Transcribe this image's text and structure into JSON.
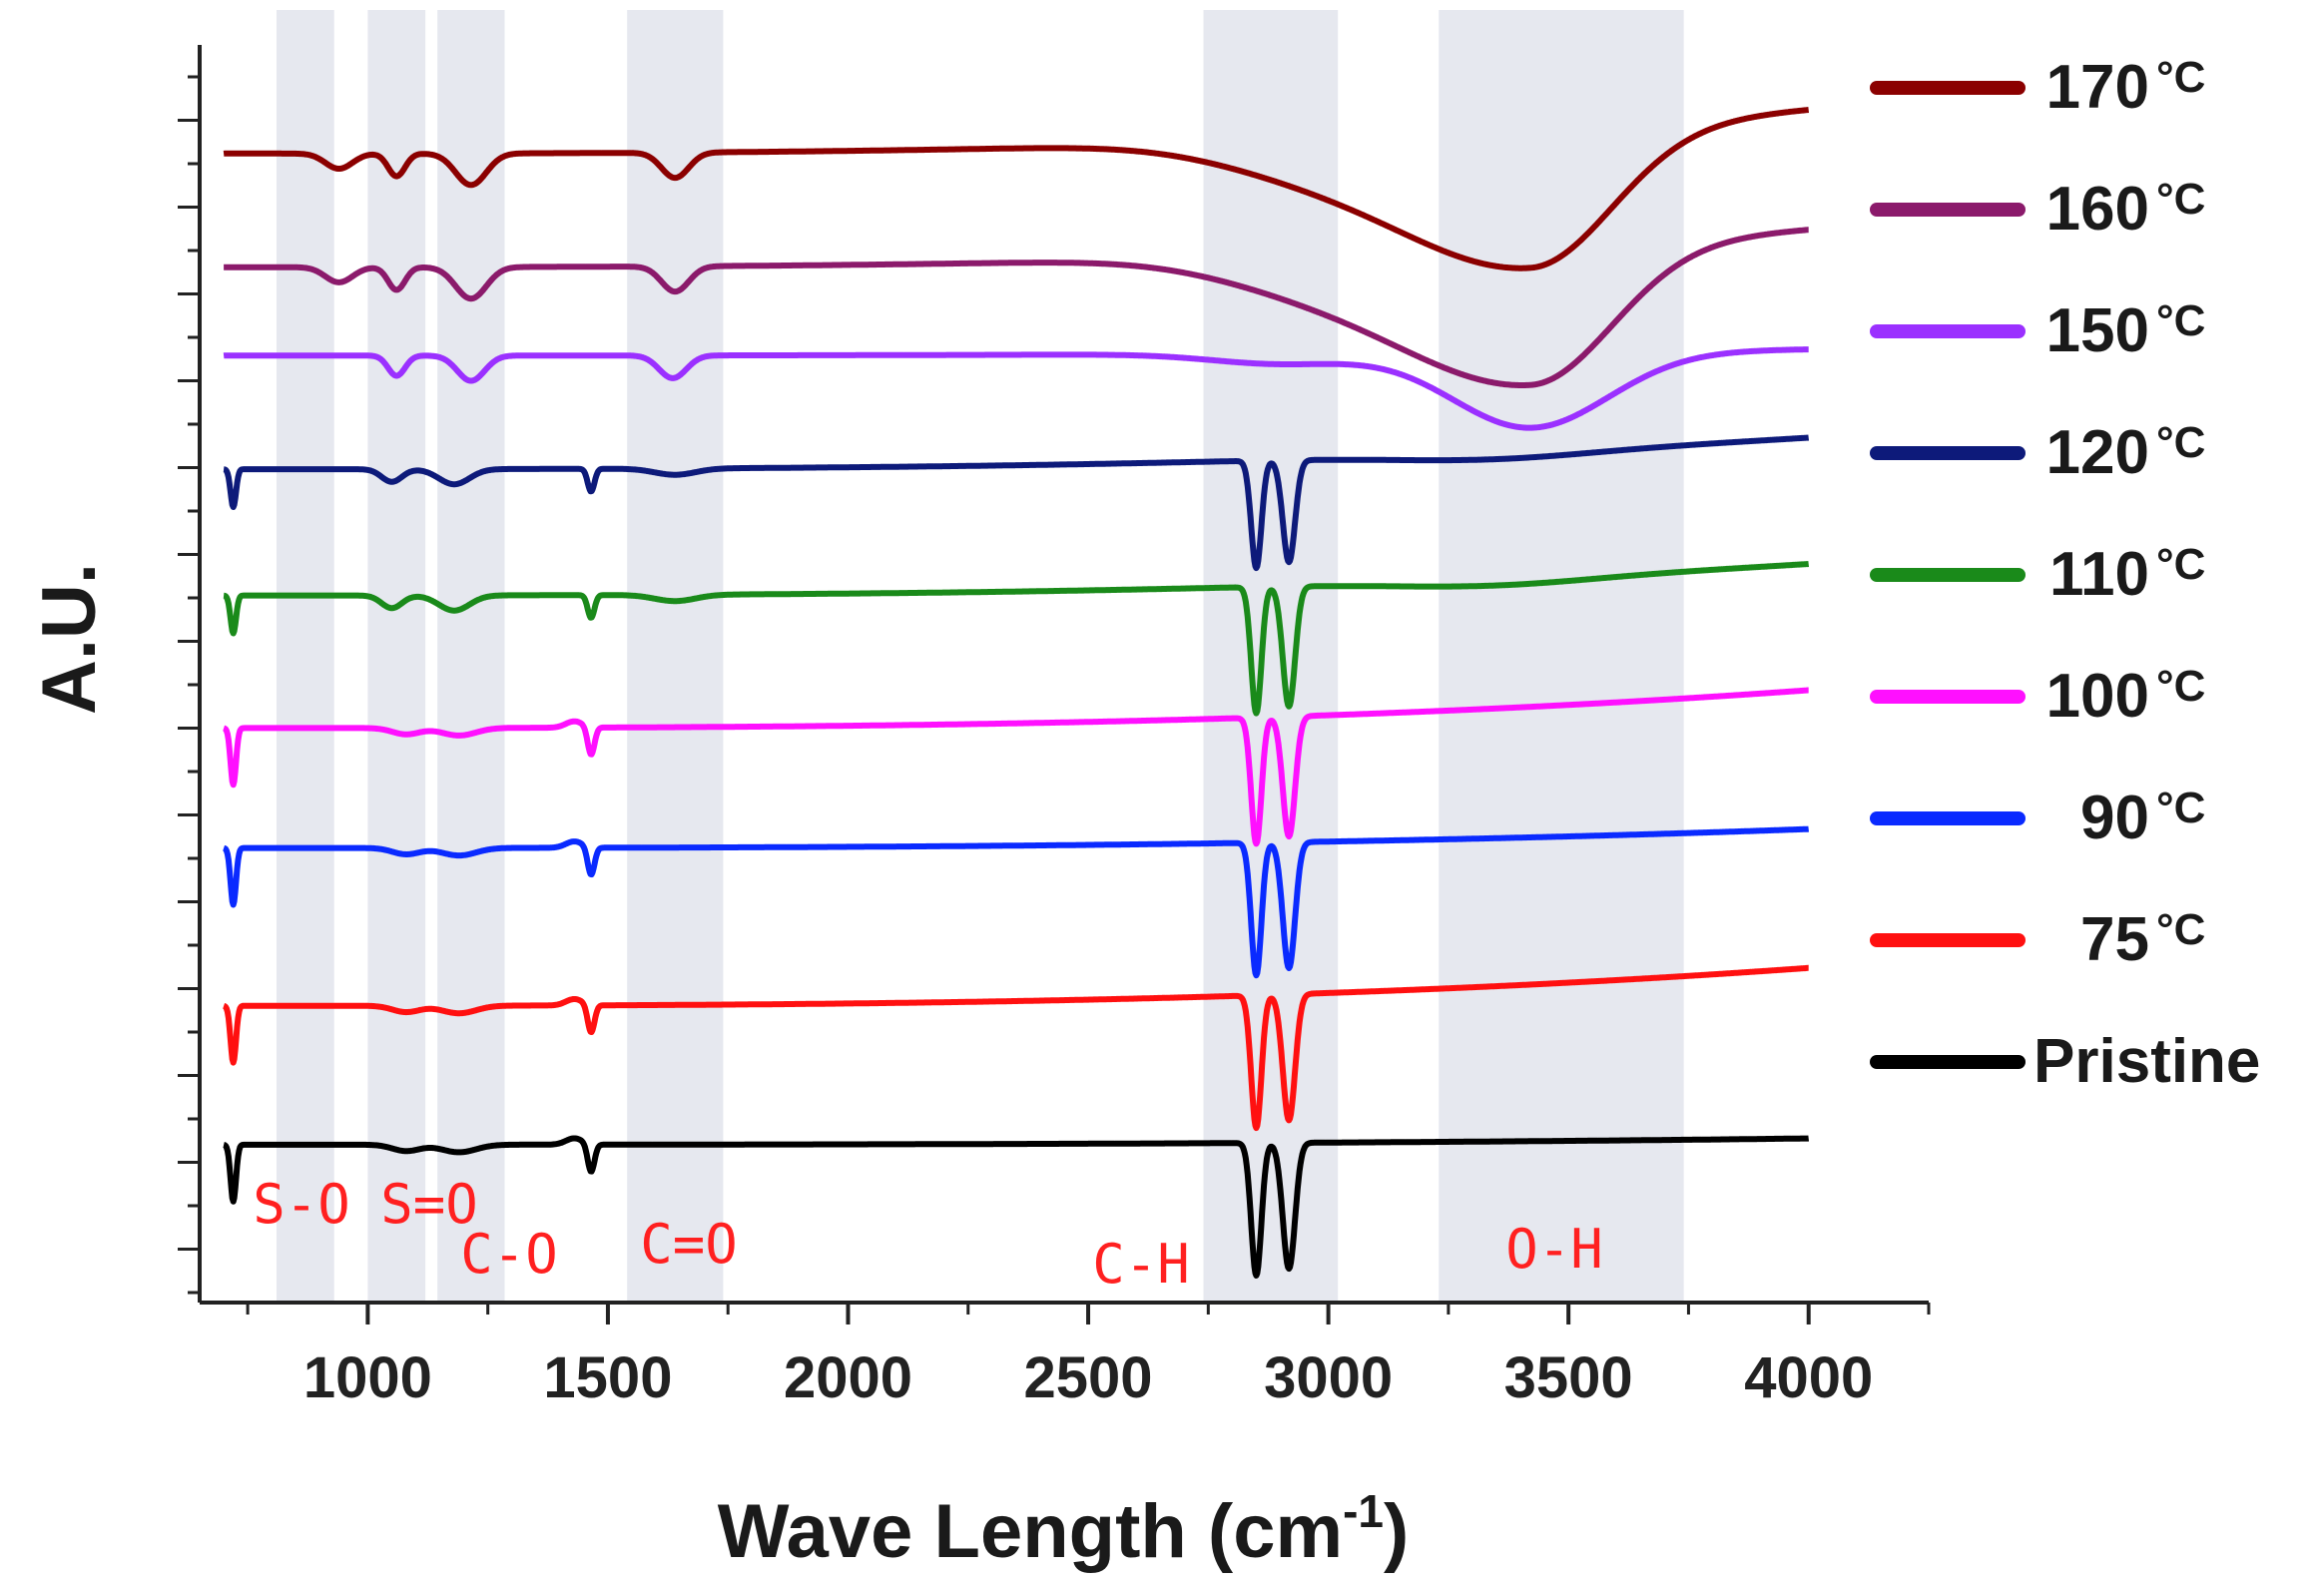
{
  "chart_data": {
    "type": "line",
    "title": "",
    "xlabel": "Wave Length (cm",
    "xlabel_sup": "-1",
    "xlabel_close": ")",
    "ylabel": "A.U.",
    "xlim": [
      650,
      4250
    ],
    "ylim": [
      0,
      10
    ],
    "x_ticks": [
      1000,
      1500,
      2000,
      2500,
      3000,
      3500,
      4000
    ],
    "x_tick_labels": [
      "1000",
      "1500",
      "2000",
      "2500",
      "3000",
      "3500",
      "4000"
    ],
    "degree_symbol": "°C",
    "bands": [
      {
        "label": "S-O",
        "from": 810,
        "to": 930
      },
      {
        "label": "S=O",
        "from": 1000,
        "to": 1120
      },
      {
        "label": "C-O",
        "from": 1145,
        "to": 1285
      },
      {
        "label": "C=O",
        "from": 1540,
        "to": 1740
      },
      {
        "label": "C-H",
        "from": 2740,
        "to": 3020
      },
      {
        "label": "O-H",
        "from": 3230,
        "to": 3740
      }
    ],
    "series": [
      {
        "name": "170",
        "has_degree": true,
        "color": "#8b0000",
        "profile": "hot2",
        "baseline": 9.1,
        "end": 9.45,
        "oh_depth": 1.1
      },
      {
        "name": "160",
        "has_degree": true,
        "color": "#8b1a6b",
        "profile": "hot2",
        "baseline": 8.2,
        "end": 8.5,
        "oh_depth": 1.1
      },
      {
        "name": "150",
        "has_degree": true,
        "color": "#9b30ff",
        "profile": "hot1",
        "baseline": 7.5,
        "end": 7.55,
        "oh_depth": 0.6
      },
      {
        "name": "120",
        "has_degree": true,
        "color": "#0d1a7a",
        "profile": "mid",
        "baseline": 6.6,
        "end": 6.85,
        "ch_depth": 0.85
      },
      {
        "name": "110",
        "has_degree": true,
        "color": "#1a8a1a",
        "profile": "mid",
        "baseline": 5.6,
        "end": 5.85,
        "ch_depth": 1.0
      },
      {
        "name": "100",
        "has_degree": true,
        "color": "#ff10ff",
        "profile": "low",
        "baseline": 4.55,
        "end": 4.85,
        "ch_depth": 1.0
      },
      {
        "name": "90",
        "has_degree": true,
        "color": "#0a2aff",
        "profile": "low",
        "baseline": 3.6,
        "end": 3.75,
        "ch_depth": 1.05
      },
      {
        "name": "75",
        "has_degree": true,
        "color": "#ff1010",
        "profile": "low",
        "baseline": 2.35,
        "end": 2.65,
        "ch_depth": 1.05
      },
      {
        "name": "Pristine",
        "has_degree": false,
        "color": "#000000",
        "profile": "low",
        "baseline": 1.25,
        "end": 1.3,
        "ch_depth": 1.05
      }
    ]
  }
}
